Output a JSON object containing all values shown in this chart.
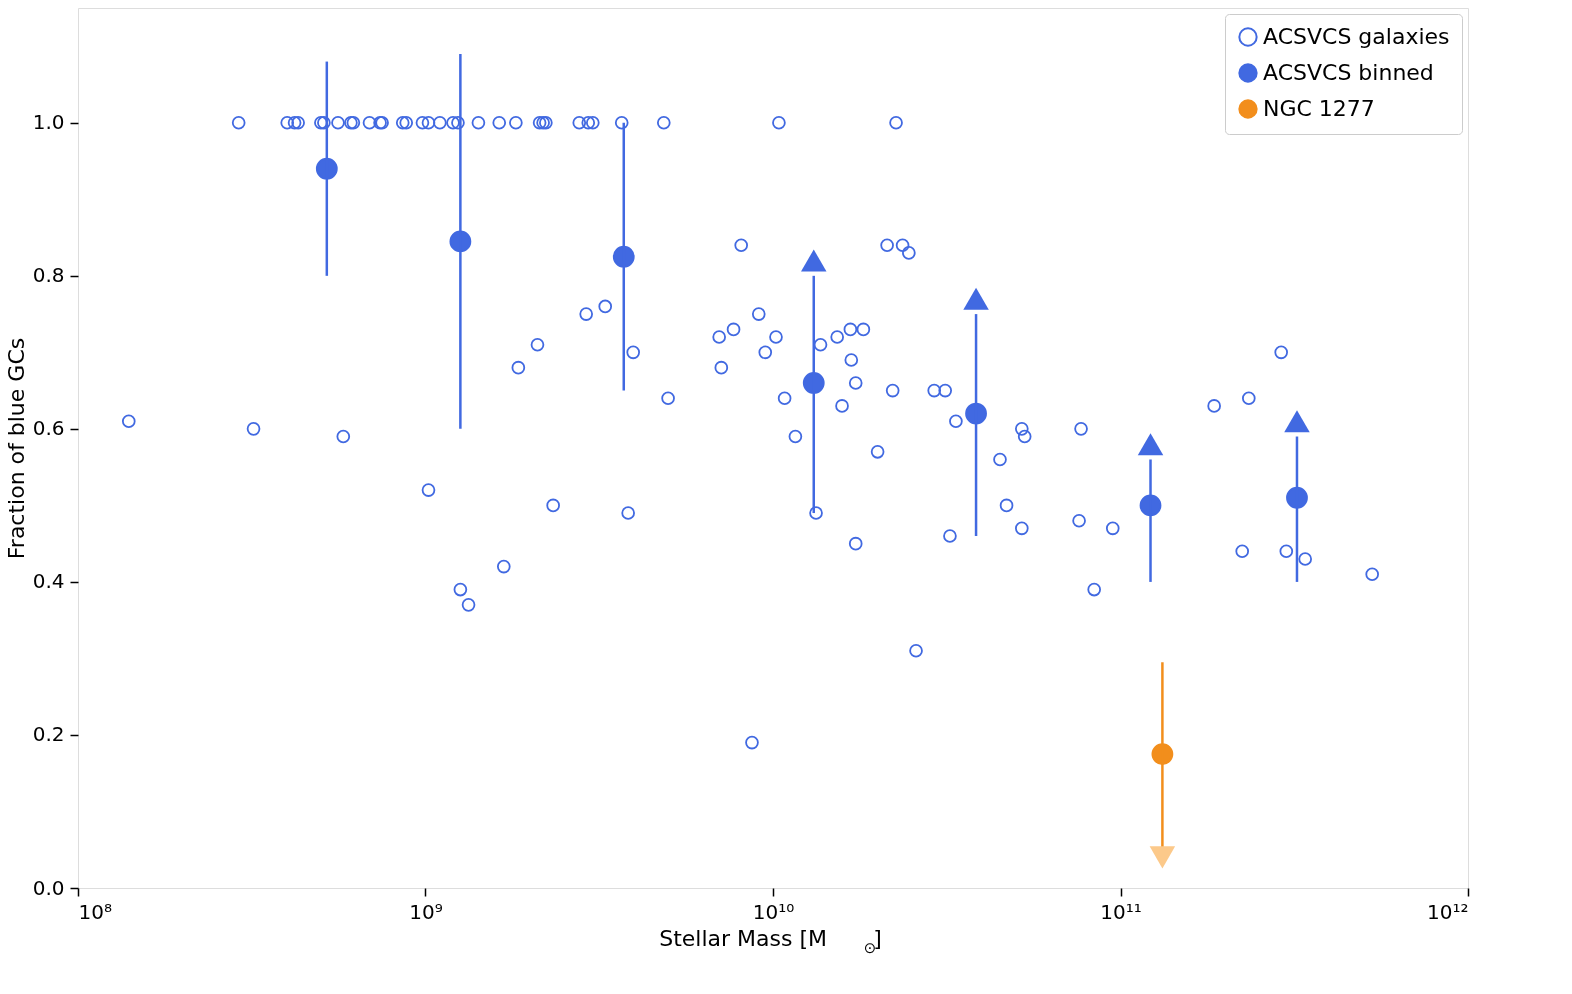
{
  "chart_data": {
    "type": "scatter",
    "xlabel": "Stellar Mass [M$_{⊙}$]",
    "ylabel": "Fraction of blue GCs",
    "log": "x",
    "xlim": [
      100000000.0,
      1000000000000.0
    ],
    "ylim": [
      0,
      1.15
    ],
    "xticks": [
      {
        "value": 100000000.0,
        "label": "10⁸"
      },
      {
        "value": 1000000000.0,
        "label": "10⁹"
      },
      {
        "value": 10000000000.0,
        "label": "10¹⁰"
      },
      {
        "value": 100000000000.0,
        "label": "10¹¹"
      },
      {
        "value": 1000000000000.0,
        "label": "10¹²"
      }
    ],
    "yticks": [
      {
        "value": 0,
        "label": "0.0"
      },
      0.2,
      0.4,
      0.6,
      0.8,
      {
        "value": 1,
        "label": "1.0"
      }
    ],
    "grid": false,
    "legend": "top right",
    "series": [
      {
        "name": "ACSVCS galaxies",
        "color": "#4169e1",
        "marker": "circle",
        "x": [
          290000000.0,
          400000000.0,
          420000000.0,
          430000000.0,
          500000000.0,
          510000000.0,
          560000000.0,
          610000000.0,
          620000000.0,
          690000000.0,
          740000000.0,
          750000000.0,
          860000000.0,
          880000000.0,
          980000000.0,
          1020000000.0,
          1100000000.0,
          1200000000.0,
          1240000000.0,
          1420000000.0,
          1630000000.0,
          1820000000.0,
          2130000000.0,
          2180000000.0,
          2220000000.0,
          2770000000.0,
          2940000000.0,
          3030000000.0,
          3670000000.0,
          4850000000.0,
          10400000000.0,
          22600000000.0,
          140000000.0,
          320000000.0,
          580000000.0,
          1020000000.0,
          1260000000.0,
          1330000000.0,
          1680000000.0,
          1850000000.0,
          2100000000.0,
          2330000000.0,
          2900000000.0,
          3290000000.0,
          3830000000.0,
          3960000000.0,
          4990000000.0,
          7000000000.0,
          7100000000.0,
          7700000000.0,
          8100000000.0,
          8700000000.0,
          9100000000.0,
          9500000000.0,
          10200000000.0,
          10800000000.0,
          11600000000.0,
          13300000000.0,
          13700000000.0,
          15300000000.0,
          15800000000.0,
          16700000000.0,
          16800000000.0,
          17300000000.0,
          17300000000.0,
          18200000000.0,
          20000000000.0,
          21300000000.0,
          22100000000.0,
          23600000000.0,
          24600000000.0,
          25800000000.0,
          29100000000.0,
          31300000000.0,
          32300000000.0,
          33600000000.0,
          45000000000.0,
          47000000000.0,
          52000000000.0,
          52000000000.0,
          53000000000.0,
          77000000000.0,
          76000000000.0,
          84000000000.0,
          95000000000.0,
          186000000000.0,
          224000000000.0,
          234000000000.0,
          290000000000.0,
          300000000000.0,
          340000000000.0,
          530000000000.0
        ],
        "values": [
          1,
          1,
          1,
          1,
          1,
          1,
          1,
          1,
          1,
          1,
          1,
          1,
          1,
          1,
          1,
          1,
          1,
          1,
          1,
          1,
          1,
          1,
          1,
          1,
          1,
          1,
          1,
          1,
          1,
          1,
          1,
          1,
          0.61,
          0.6,
          0.59,
          0.52,
          0.39,
          0.37,
          0.42,
          0.68,
          0.71,
          0.5,
          0.75,
          0.76,
          0.49,
          0.7,
          0.64,
          0.72,
          0.68,
          0.73,
          0.84,
          0.19,
          0.75,
          0.7,
          0.72,
          0.64,
          0.59,
          0.49,
          0.71,
          0.72,
          0.63,
          0.73,
          0.69,
          0.66,
          0.45,
          0.73,
          0.57,
          0.84,
          0.65,
          0.84,
          0.83,
          0.31,
          0.65,
          0.65,
          0.46,
          0.61,
          0.56,
          0.5,
          0.6,
          0.47,
          0.59,
          0.6,
          0.48,
          0.39,
          0.47,
          0.63,
          0.44,
          0.64,
          0.7,
          0.44,
          0.43,
          0.41
        ]
      },
      {
        "name": "ACSVCS binned",
        "color": "#4169e1",
        "marker": "circle",
        "x": [
          520000000.0,
          1260000000.0,
          3720000000.0,
          13100000000.0,
          38400000000.0,
          122000000000.0,
          322000000000.0
        ],
        "values": [
          0.94,
          0.845,
          0.825,
          0.66,
          0.62,
          0.5,
          0.51
        ],
        "errors": [
          [
            0.8,
            1.08
          ],
          [
            0.6,
            1.09
          ],
          [
            0.65,
            1.0
          ],
          [
            0.49,
            0.8
          ],
          [
            0.46,
            0.75
          ],
          [
            0.4,
            0.56
          ],
          [
            0.4,
            0.59
          ]
        ]
      },
      {
        "name": "NGC 1277",
        "color": "#f28e1c",
        "marker": "circle",
        "x": [
          132000000000.0
        ],
        "values": [
          0.175
        ],
        "errors": [
          [
            0.05,
            0.295
          ]
        ]
      },
      {
        "color": "#4169e1",
        "marker": "triangle",
        "x": [
          13100000000.0,
          38400000000.0,
          122000000000.0,
          322000000000.0
        ],
        "values": [
          0.82,
          0.77,
          0.58,
          0.61
        ]
      },
      {
        "color": "#fcc98a",
        "marker": "triangle_down",
        "x": [
          132000000000.0
        ],
        "values": [
          0.04
        ]
      }
    ]
  }
}
